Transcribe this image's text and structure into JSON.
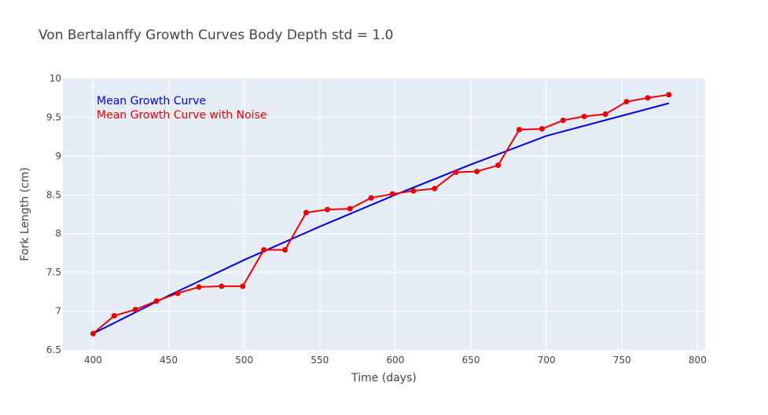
{
  "chart_data": {
    "type": "line",
    "title": "Von Bertalanffy Growth Curves Body Depth std = 1.0",
    "xlabel": "Time (days)",
    "ylabel": "Fork Length (cm)",
    "xlim": [
      380,
      805
    ],
    "ylim": [
      6.5,
      10
    ],
    "x_ticks": [
      400,
      450,
      500,
      550,
      600,
      650,
      700,
      750,
      800
    ],
    "y_ticks": [
      6.5,
      7,
      7.5,
      8,
      8.5,
      9,
      9.5,
      10
    ],
    "y_tick_labels": [
      "6.5",
      "7",
      "7.5",
      "8",
      "8.5",
      "9",
      "9.5",
      "10"
    ],
    "grid": true,
    "legend_position": "top-left inside plot",
    "series": [
      {
        "name": "Mean Growth Curve",
        "color": "#0000ee",
        "mode": "lines",
        "x": [
          400,
          450,
          500,
          550,
          600,
          650,
          700,
          750,
          781
        ],
        "y": [
          6.71,
          7.2,
          7.66,
          8.09,
          8.5,
          8.89,
          9.26,
          9.52,
          9.68
        ]
      },
      {
        "name": "Mean Growth Curve with Noise",
        "color": "#ee0000",
        "mode": "lines+markers",
        "x": [
          400,
          414,
          428,
          442,
          456,
          470,
          485,
          499,
          513,
          527,
          541,
          555,
          570,
          584,
          598,
          612,
          626,
          640,
          654,
          668,
          682,
          697,
          711,
          725,
          739,
          753,
          767,
          781
        ],
        "y": [
          6.71,
          6.94,
          7.02,
          7.13,
          7.23,
          7.31,
          7.32,
          7.32,
          7.79,
          7.79,
          8.27,
          8.31,
          8.32,
          8.46,
          8.51,
          8.55,
          8.58,
          8.79,
          8.8,
          8.88,
          9.34,
          9.35,
          9.46,
          9.51,
          9.54,
          9.7,
          9.75,
          9.79
        ]
      }
    ]
  }
}
